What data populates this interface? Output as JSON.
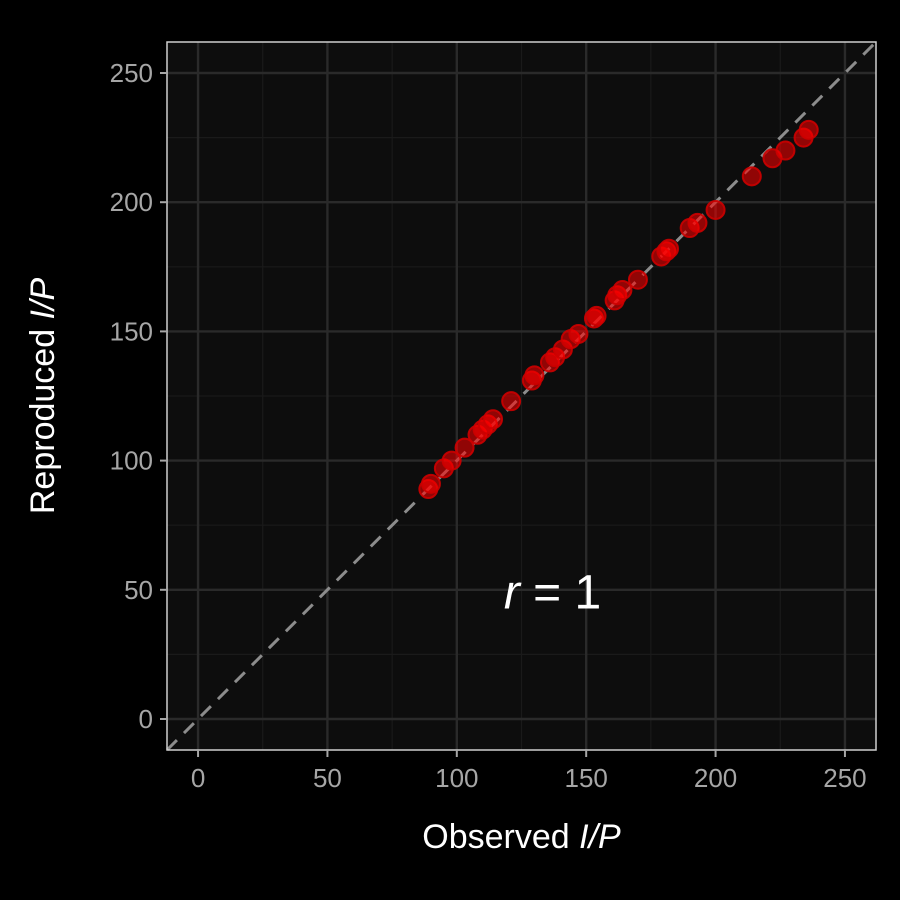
{
  "colors": {
    "background": "#000000",
    "panel": "#0d0d0d",
    "grid_major": "#2a2a2a",
    "grid_minor": "#1a1a1a",
    "panel_border": "#cfcfcf",
    "point_fill": "#ff0000",
    "point_stroke": "#cc0000",
    "reference_line": "#8c8c8c",
    "tick_text": "#a6a6a6",
    "title_text": "#ffffff"
  },
  "chart_data": {
    "type": "scatter",
    "xlabel": {
      "prefix": "Observed ",
      "italic": "I/P"
    },
    "ylabel": {
      "prefix": "Reproduced  ",
      "italic": "I/P"
    },
    "annotation": {
      "italic": "r",
      "rest": " = 1",
      "x": 137,
      "y": 49
    },
    "xlim": [
      -12,
      262
    ],
    "ylim": [
      -12,
      262
    ],
    "xticks": [
      0,
      50,
      100,
      150,
      200,
      250
    ],
    "yticks": [
      0,
      50,
      100,
      150,
      200,
      250
    ],
    "x_tick_labels": [
      "0",
      "50",
      "100",
      "150",
      "200",
      "250"
    ],
    "y_tick_labels": [
      "0",
      "50",
      "100",
      "150",
      "200",
      "250"
    ],
    "grid": true,
    "reference_line": {
      "slope": 1,
      "intercept": 0,
      "style": "dashed"
    },
    "points": [
      {
        "x": 89,
        "y": 89
      },
      {
        "x": 90,
        "y": 91
      },
      {
        "x": 95,
        "y": 97
      },
      {
        "x": 98,
        "y": 100
      },
      {
        "x": 103,
        "y": 105
      },
      {
        "x": 108,
        "y": 110
      },
      {
        "x": 110,
        "y": 112
      },
      {
        "x": 112,
        "y": 114
      },
      {
        "x": 114,
        "y": 116
      },
      {
        "x": 121,
        "y": 123
      },
      {
        "x": 129,
        "y": 131
      },
      {
        "x": 130,
        "y": 133
      },
      {
        "x": 136,
        "y": 138
      },
      {
        "x": 138,
        "y": 140
      },
      {
        "x": 141,
        "y": 143
      },
      {
        "x": 144,
        "y": 147
      },
      {
        "x": 147,
        "y": 149
      },
      {
        "x": 153,
        "y": 155
      },
      {
        "x": 154,
        "y": 156
      },
      {
        "x": 161,
        "y": 162
      },
      {
        "x": 162,
        "y": 164
      },
      {
        "x": 164,
        "y": 166
      },
      {
        "x": 170,
        "y": 170
      },
      {
        "x": 179,
        "y": 179
      },
      {
        "x": 181,
        "y": 181
      },
      {
        "x": 182,
        "y": 182
      },
      {
        "x": 190,
        "y": 190
      },
      {
        "x": 193,
        "y": 192
      },
      {
        "x": 200,
        "y": 197
      },
      {
        "x": 214,
        "y": 210
      },
      {
        "x": 222,
        "y": 217
      },
      {
        "x": 227,
        "y": 220
      },
      {
        "x": 234,
        "y": 225
      },
      {
        "x": 236,
        "y": 228
      }
    ]
  }
}
